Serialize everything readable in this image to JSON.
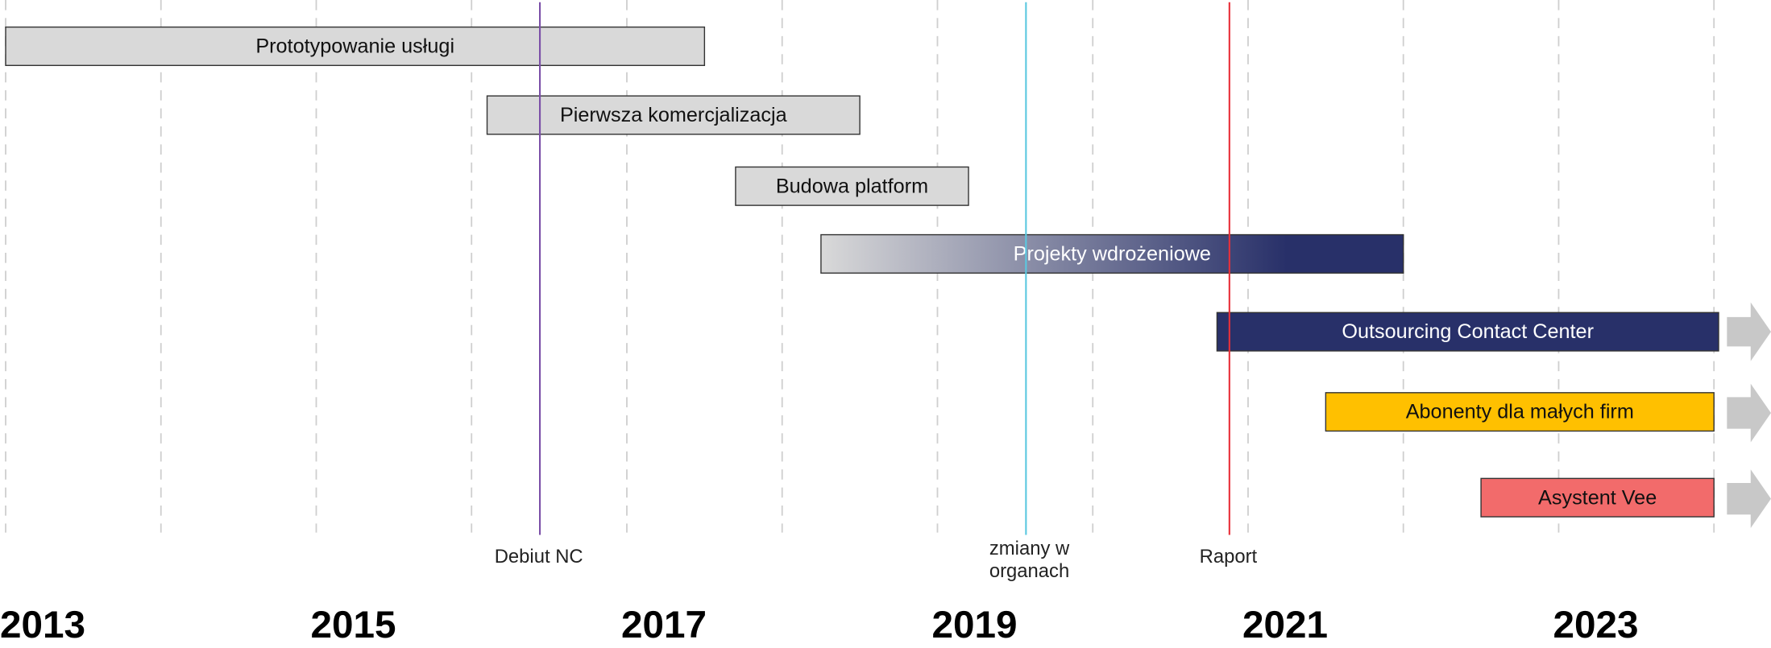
{
  "chart_data": {
    "type": "timeline",
    "xlim": [
      2013,
      2024.37
    ],
    "xticks": [
      {
        "value": 2013,
        "label": "2013"
      },
      {
        "value": 2015,
        "label": "2015"
      },
      {
        "value": 2017,
        "label": "2017"
      },
      {
        "value": 2019,
        "label": "2019"
      },
      {
        "value": 2021,
        "label": "2021"
      },
      {
        "value": 2023,
        "label": "2023"
      }
    ],
    "minor_xticks": [
      2014,
      2016,
      2018,
      2020,
      2022,
      2024
    ],
    "grid": true,
    "tasks": [
      {
        "name": "Prototypowanie usługi",
        "start": 2013.0,
        "end": 2017.5,
        "color": "#d9d9d9",
        "text_color": "#111111"
      },
      {
        "name": "Pierwsza komercjalizacja",
        "start": 2016.1,
        "end": 2018.5,
        "color": "#d9d9d9",
        "text_color": "#111111"
      },
      {
        "name": "Budowa platform",
        "start": 2017.7,
        "end": 2019.2,
        "color": "#d9d9d9",
        "text_color": "#111111"
      },
      {
        "name": "Projekty wdrożeniowe",
        "start": 2018.25,
        "end": 2022.0,
        "color": [
          "#d9d9d9",
          "#283069"
        ],
        "text_color": "#ffffff"
      },
      {
        "name": "Outsourcing Contact Center",
        "start": 2020.8,
        "end": 2024.03,
        "color": "#283069",
        "text_color": "#ffffff"
      },
      {
        "name": "Abonenty dla małych firm",
        "start": 2021.5,
        "end": 2024.0,
        "color": "#ffc000",
        "text_color": "#111111"
      },
      {
        "name": "Asystent Vee",
        "start": 2022.5,
        "end": 2024.0,
        "color": "#f26b6b",
        "text_color": "#111111"
      }
    ],
    "markers": [
      {
        "label": [
          "Debiut NC"
        ],
        "x": 2016.44,
        "color": "#7b4fa8"
      },
      {
        "label": [
          "zmiany w",
          "organach"
        ],
        "x": 2019.57,
        "color": "#5bc8e0"
      },
      {
        "label": [
          "Raport"
        ],
        "x": 2020.88,
        "color": "#e8303a"
      }
    ]
  }
}
